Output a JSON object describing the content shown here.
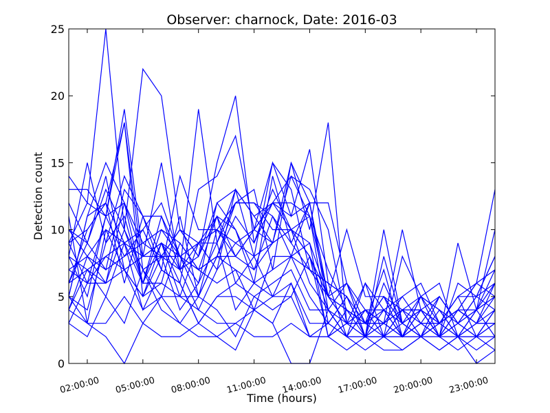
{
  "chart_data": {
    "type": "line",
    "title": "Observer: charnock, Date: 2016-03",
    "xlabel": "Time (hours)",
    "ylabel": "Detection count",
    "xlim": [
      1,
      24
    ],
    "ylim": [
      0,
      25
    ],
    "x_ticks": [
      {
        "value": 2,
        "label": "02:00:00"
      },
      {
        "value": 5,
        "label": "05:00:00"
      },
      {
        "value": 8,
        "label": "08:00:00"
      },
      {
        "value": 11,
        "label": "11:00:00"
      },
      {
        "value": 14,
        "label": "14:00:00"
      },
      {
        "value": 17,
        "label": "17:00:00"
      },
      {
        "value": 20,
        "label": "20:00:00"
      },
      {
        "value": 23,
        "label": "23:00:00"
      }
    ],
    "y_ticks": [
      0,
      5,
      10,
      15,
      20,
      25
    ],
    "grid": false,
    "legend": "none",
    "line_color": "#0000ff",
    "x": [
      1,
      2,
      3,
      4,
      5,
      6,
      7,
      8,
      9,
      10,
      11,
      12,
      13,
      14,
      15,
      16,
      17,
      18,
      19,
      20,
      21,
      22,
      23,
      24
    ],
    "series": [
      {
        "values": [
          14,
          12,
          25,
          10,
          22,
          20,
          10,
          8,
          15,
          20,
          9,
          13,
          10,
          11,
          7,
          4,
          3,
          5,
          2,
          4,
          3,
          5,
          6,
          13
        ]
      },
      {
        "values": [
          13,
          13,
          11,
          19,
          8,
          15,
          7,
          19,
          9,
          13,
          8,
          15,
          11,
          16,
          6,
          5,
          2,
          10,
          3,
          5,
          2,
          9,
          4,
          10
        ]
      },
      {
        "values": [
          8,
          15,
          9,
          14,
          11,
          7,
          14,
          10,
          10,
          12,
          13,
          7,
          15,
          10,
          18,
          3,
          4,
          3,
          10,
          4,
          5,
          3,
          5,
          8
        ]
      },
      {
        "values": [
          6,
          10,
          12,
          18,
          5,
          9,
          6,
          13,
          14,
          17,
          10,
          12,
          14,
          11,
          5,
          4,
          3,
          4,
          5,
          6,
          3,
          4,
          6,
          7
        ]
      },
      {
        "values": [
          5,
          11,
          15,
          12,
          9,
          10,
          8,
          6,
          12,
          10,
          7,
          11,
          9,
          12,
          5,
          6,
          2,
          3,
          2,
          5,
          6,
          2,
          4,
          5
        ]
      },
      {
        "values": [
          10,
          9,
          7,
          13,
          11,
          8,
          10,
          8,
          12,
          13,
          11,
          9,
          15,
          12,
          5,
          10,
          5,
          5,
          4,
          5,
          3,
          5,
          5,
          4
        ]
      },
      {
        "values": [
          11,
          3,
          10,
          9,
          8,
          9,
          7,
          9,
          10,
          9,
          10,
          9,
          14,
          13,
          10,
          3,
          6,
          2,
          8,
          5,
          4,
          2,
          3,
          6
        ]
      },
      {
        "values": [
          9,
          10,
          12,
          9,
          10,
          12,
          8,
          9,
          11,
          8,
          10,
          15,
          13,
          7,
          6,
          2,
          2,
          8,
          3,
          4,
          3,
          4,
          6,
          5
        ]
      },
      {
        "values": [
          12,
          9,
          13,
          10,
          7,
          8,
          10,
          9,
          9,
          12,
          12,
          11,
          8,
          12,
          12,
          6,
          4,
          2,
          4,
          2,
          3,
          5,
          2,
          4
        ]
      },
      {
        "values": [
          8,
          7,
          6,
          12,
          6,
          6,
          5,
          9,
          7,
          13,
          11,
          12,
          11,
          12,
          4,
          2,
          6,
          4,
          2,
          3,
          5,
          3,
          4,
          6
        ]
      },
      {
        "values": [
          9,
          12,
          11,
          18,
          7,
          5,
          9,
          7,
          8,
          11,
          9,
          12,
          10,
          8,
          4,
          6,
          3,
          7,
          2,
          5,
          4,
          3,
          2,
          3
        ]
      },
      {
        "values": [
          7,
          8,
          10,
          7,
          5,
          6,
          11,
          5,
          8,
          12,
          12,
          10,
          10,
          8,
          5,
          3,
          2,
          3,
          5,
          3,
          2,
          4,
          3,
          5
        ]
      },
      {
        "values": [
          5,
          11,
          12,
          6,
          11,
          11,
          8,
          7,
          11,
          10,
          6,
          14,
          9,
          7,
          6,
          5,
          3,
          3,
          4,
          4,
          2,
          3,
          5,
          6
        ]
      },
      {
        "values": [
          6,
          9,
          14,
          7,
          8,
          9,
          8,
          7,
          8,
          8,
          10,
          12,
          12,
          11,
          3,
          5,
          2,
          6,
          3,
          2,
          3,
          4,
          4,
          7
        ]
      },
      {
        "values": [
          8,
          5,
          11,
          12,
          8,
          8,
          7,
          8,
          11,
          6,
          8,
          9,
          10,
          9,
          2,
          3,
          4,
          4,
          3,
          4,
          2,
          6,
          5,
          8
        ]
      },
      {
        "values": [
          9,
          6,
          11,
          8,
          9,
          8,
          8,
          5,
          10,
          8,
          7,
          9,
          10,
          6,
          4,
          2,
          4,
          3,
          2,
          2,
          5,
          3,
          4,
          5
        ]
      },
      {
        "values": [
          7,
          6,
          8,
          9,
          6,
          11,
          7,
          4,
          7,
          9,
          8,
          5,
          8,
          7,
          5,
          3,
          2,
          4,
          2,
          4,
          2,
          4,
          3,
          4
        ]
      },
      {
        "values": [
          5,
          4,
          9,
          11,
          6,
          9,
          5,
          5,
          8,
          7,
          4,
          8,
          8,
          9,
          5,
          4,
          3,
          5,
          3,
          2,
          3,
          2,
          3,
          3
        ]
      },
      {
        "values": [
          10,
          8,
          6,
          10,
          6,
          10,
          9,
          7,
          6,
          7,
          6,
          7,
          8,
          5,
          3,
          2,
          4,
          3,
          4,
          4,
          2,
          2,
          2,
          4
        ]
      },
      {
        "values": [
          4,
          8,
          7,
          8,
          10,
          7,
          6,
          3,
          5,
          6,
          5,
          6,
          7,
          4,
          4,
          3,
          3,
          3,
          2,
          3,
          3,
          4,
          3,
          3
        ]
      },
      {
        "values": [
          3,
          6,
          6,
          7,
          5,
          8,
          4,
          6,
          9,
          4,
          6,
          5,
          5,
          8,
          2,
          4,
          2,
          2,
          3,
          2,
          4,
          2,
          2,
          3
        ]
      },
      {
        "values": [
          6,
          7,
          5,
          9,
          4,
          7,
          6,
          3,
          5,
          5,
          4,
          5,
          6,
          3,
          3,
          5,
          2,
          2,
          4,
          3,
          3,
          2,
          4,
          2
        ]
      },
      {
        "values": [
          4,
          7,
          8,
          7,
          4,
          5,
          3,
          5,
          4,
          2,
          5,
          4,
          5,
          2,
          2,
          3,
          3,
          2,
          2,
          3,
          2,
          3,
          2,
          2
        ]
      },
      {
        "values": [
          5,
          3,
          3,
          5,
          3,
          5,
          5,
          4,
          3,
          3,
          4,
          3,
          6,
          2,
          3,
          2,
          2,
          2,
          1,
          2,
          2,
          1,
          2,
          1
        ]
      },
      {
        "values": [
          3,
          2,
          5,
          3,
          7,
          4,
          3,
          2,
          2,
          1,
          4,
          3,
          0,
          0,
          4,
          2,
          1,
          2,
          2,
          2,
          1,
          2,
          0,
          1
        ]
      },
      {
        "values": [
          4,
          3,
          2,
          0,
          3,
          2,
          2,
          3,
          2,
          3,
          2,
          2,
          3,
          2,
          2,
          1,
          2,
          1,
          1,
          2,
          1,
          2,
          1,
          2
        ]
      }
    ]
  }
}
